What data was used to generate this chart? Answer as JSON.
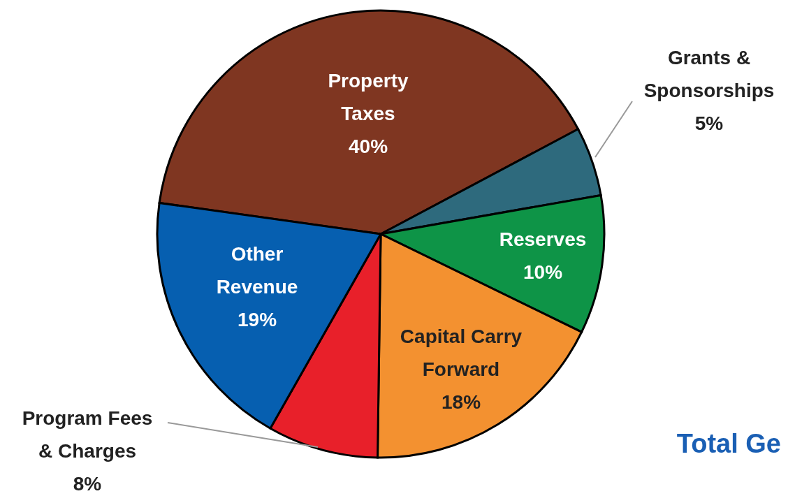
{
  "chart_data": {
    "type": "pie",
    "categories": [
      "Property Taxes",
      "Grants & Sponsorships",
      "Reserves",
      "Capital Carry Forward",
      "Program Fees & Charges",
      "Other Revenue"
    ],
    "values": [
      40,
      5,
      10,
      18,
      8,
      19
    ],
    "value_labels": [
      "40%",
      "5%",
      "10%",
      "18%",
      "8%",
      "19%"
    ],
    "colors": [
      "#7f3621",
      "#2e6a7d",
      "#0e9447",
      "#f39130",
      "#e8202a",
      "#065fb0"
    ],
    "annotations": [
      "Total Ge"
    ]
  }
}
